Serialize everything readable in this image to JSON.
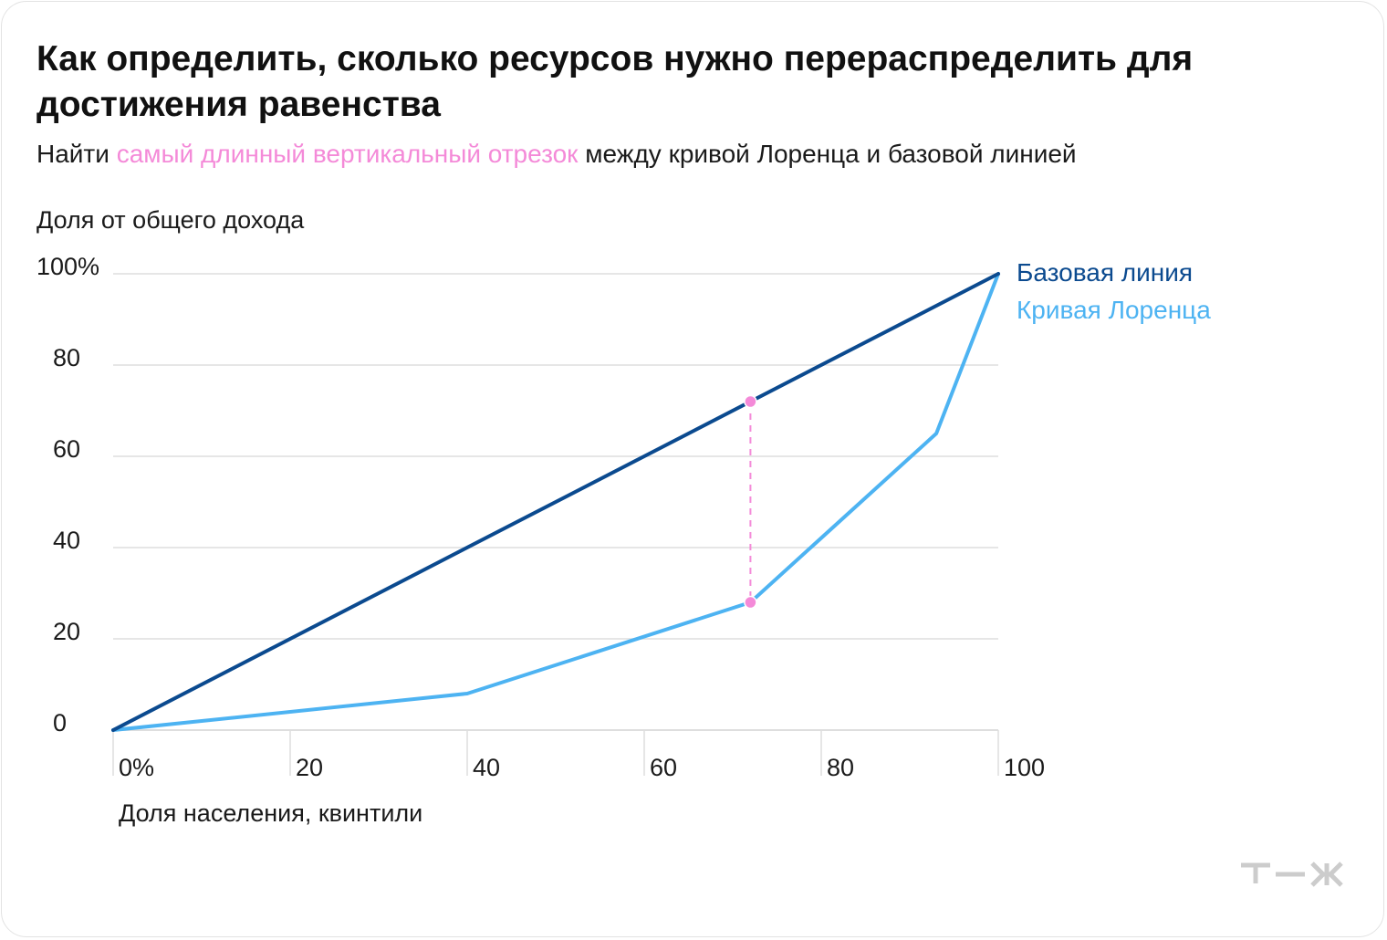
{
  "title": "Как определить, сколько ресурсов нужно перераспределить для достижения равенства",
  "subtitle": {
    "before": "Найти ",
    "highlight": "самый длинный вертикальный отрезок",
    "after": " между кривой Лоренца и базовой линией"
  },
  "colors": {
    "baseline": "#0b4a8f",
    "lorenz": "#4db3f2",
    "highlight": "#f48ad8",
    "grid": "#dedede",
    "text": "#1a1a1a"
  },
  "chart_data": {
    "type": "line",
    "ylabel": "Доля от общего дохода",
    "xlabel": "Доля населения, квинтили",
    "xlim": [
      0,
      100
    ],
    "ylim": [
      0,
      100
    ],
    "x_ticks": [
      "0%",
      "20",
      "40",
      "60",
      "80",
      "100"
    ],
    "y_ticks": [
      "100%",
      "80",
      "60",
      "40",
      "20",
      "0"
    ],
    "series": [
      {
        "name": "Базовая линия",
        "color": "#0b4a8f",
        "points": [
          [
            0,
            0
          ],
          [
            100,
            100
          ]
        ]
      },
      {
        "name": "Кривая Лоренца",
        "color": "#4db3f2",
        "points": [
          [
            0,
            0
          ],
          [
            40,
            8
          ],
          [
            72,
            28
          ],
          [
            93,
            65
          ],
          [
            100,
            100
          ]
        ]
      }
    ],
    "annotation": {
      "type": "vertical-segment",
      "x": 72,
      "y_top": 72,
      "y_bottom": 28,
      "color": "#f48ad8",
      "style": "dashed"
    },
    "grid": true,
    "legend": "right, at line ends"
  },
  "logo_icon": "tzh-logo"
}
